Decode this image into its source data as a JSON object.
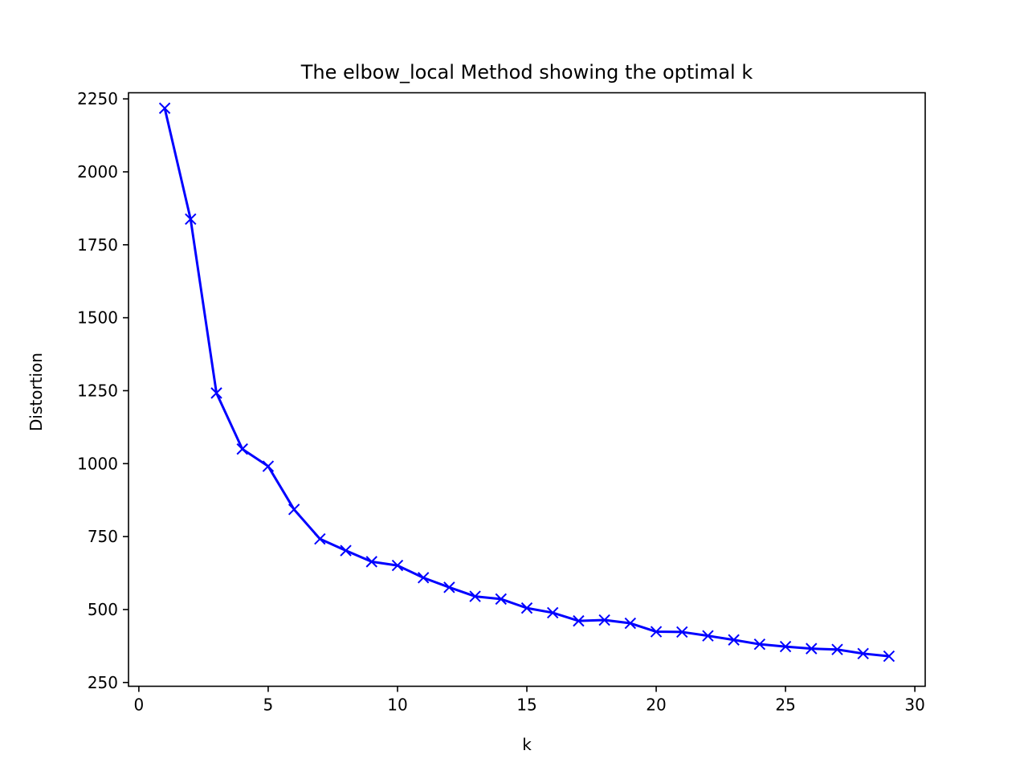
{
  "chart_data": {
    "type": "line",
    "title": "The elbow_local Method showing the optimal k",
    "xlabel": "k",
    "ylabel": "Distortion",
    "xlim": [
      -0.4,
      30.4
    ],
    "ylim": [
      237,
      2271
    ],
    "xticks": [
      0,
      5,
      10,
      15,
      20,
      25,
      30
    ],
    "yticks": [
      250,
      500,
      750,
      1000,
      1250,
      1500,
      1750,
      2000,
      2250
    ],
    "grid": false,
    "legend": "none",
    "series": [
      {
        "color": "#0000ff",
        "marker": "x",
        "x": [
          1,
          2,
          3,
          4,
          5,
          6,
          7,
          8,
          9,
          10,
          11,
          12,
          13,
          14,
          15,
          16,
          17,
          18,
          19,
          20,
          21,
          22,
          23,
          24,
          25,
          26,
          27,
          28,
          29
        ],
        "y": [
          2218,
          1838,
          1242,
          1050,
          991,
          843,
          742,
          702,
          664,
          651,
          609,
          576,
          545,
          536,
          505,
          489,
          461,
          464,
          453,
          424,
          423,
          410,
          396,
          381,
          373,
          366,
          363,
          349,
          340
        ]
      }
    ]
  }
}
